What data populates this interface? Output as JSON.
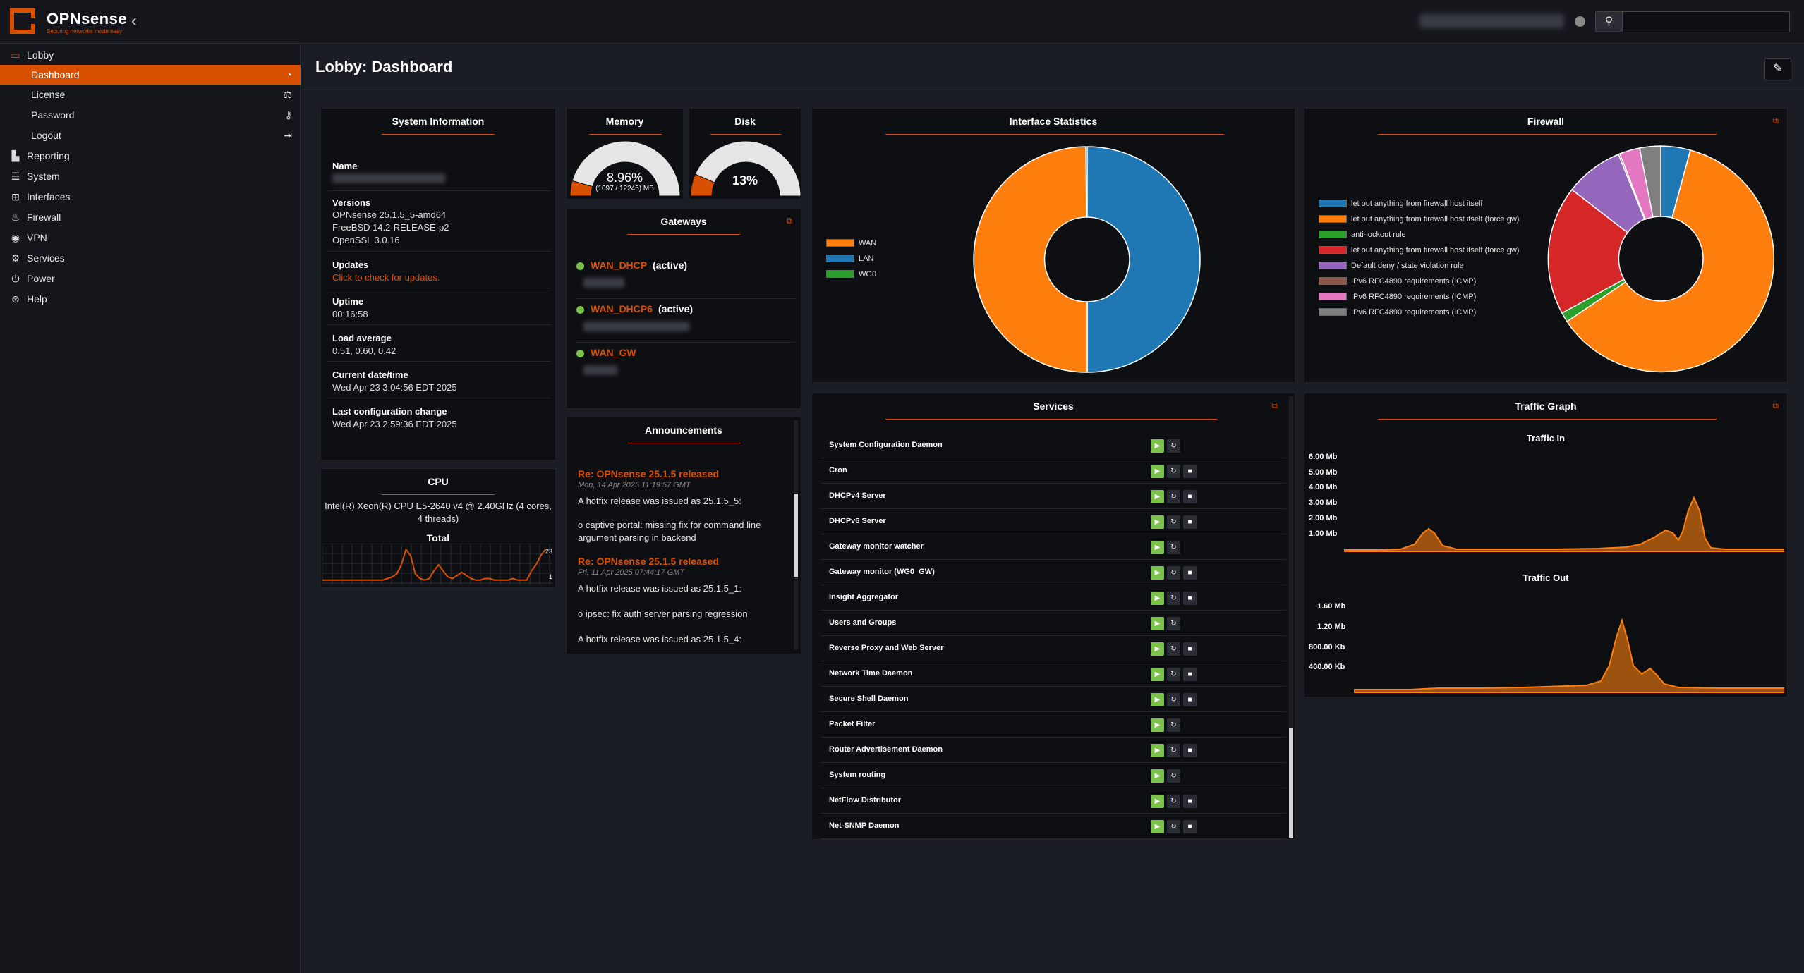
{
  "app": {
    "name": "OPNsense",
    "tagline": "Securing networks made easy",
    "search_placeholder": ""
  },
  "sidebar": {
    "items": [
      {
        "label": "Lobby",
        "icon": "laptop-icon"
      },
      {
        "label": "Dashboard",
        "icon": "dashboard-icon",
        "active": true
      },
      {
        "label": "License",
        "icon": "balance-icon"
      },
      {
        "label": "Password",
        "icon": "key-icon"
      },
      {
        "label": "Logout",
        "icon": "sign-out-icon"
      },
      {
        "label": "Reporting",
        "icon": "area-chart-icon"
      },
      {
        "label": "System",
        "icon": "server-icon"
      },
      {
        "label": "Interfaces",
        "icon": "sitemap-icon"
      },
      {
        "label": "Firewall",
        "icon": "fire-icon"
      },
      {
        "label": "VPN",
        "icon": "globe-icon"
      },
      {
        "label": "Services",
        "icon": "cog-icon"
      },
      {
        "label": "Power",
        "icon": "plug-icon"
      },
      {
        "label": "Help",
        "icon": "life-ring-icon"
      }
    ]
  },
  "header": {
    "title": "Lobby: Dashboard"
  },
  "system_info": {
    "title": "System Information",
    "name_label": "Name",
    "versions_label": "Versions",
    "versions": [
      "OPNsense 25.1.5_5-amd64",
      "FreeBSD 14.2-RELEASE-p2",
      "OpenSSL 3.0.16"
    ],
    "updates_label": "Updates",
    "updates_link": "Click to check for updates.",
    "uptime_label": "Uptime",
    "uptime": "00:16:58",
    "load_label": "Load average",
    "load": "0.51, 0.60, 0.42",
    "datetime_label": "Current date/time",
    "datetime": "Wed Apr 23 3:04:56 EDT 2025",
    "lastconf_label": "Last configuration change",
    "lastconf": "Wed Apr 23 2:59:36 EDT 2025"
  },
  "cpu": {
    "title": "CPU",
    "model": "Intel(R) Xeon(R) CPU E5-2640 v4 @ 2.40GHz (4 cores, 4 threads)",
    "total_label": "Total",
    "max_label": "23",
    "min_label": "1",
    "values": [
      2,
      2,
      2,
      2,
      2,
      2,
      2,
      2,
      2,
      2,
      2,
      2,
      2,
      2,
      3,
      4,
      6,
      12,
      22,
      18,
      6,
      3,
      2,
      3,
      8,
      12,
      8,
      4,
      3,
      5,
      7,
      5,
      3,
      2,
      2,
      3,
      3,
      2,
      2,
      2,
      2,
      3,
      2,
      2,
      2,
      8,
      12,
      18,
      22
    ]
  },
  "memory": {
    "title": "Memory",
    "percent": 8.96,
    "percent_text": "8.96%",
    "detail": "(1097 / 12245) MB"
  },
  "disk": {
    "title": "Disk",
    "percent": 13,
    "percent_text": "13%"
  },
  "gateways": {
    "title": "Gateways",
    "items": [
      {
        "name": "WAN_DHCP",
        "status": "(active)"
      },
      {
        "name": "WAN_DHCP6",
        "status": "(active)"
      },
      {
        "name": "WAN_GW",
        "status": ""
      }
    ]
  },
  "announcements": {
    "title": "Announcements",
    "items": [
      {
        "title": "Re: OPNsense 25.1.5 released",
        "date": "Mon, 14 Apr 2025 11:19:57 GMT",
        "lines": [
          "A hotfix release was issued as 25.1.5_5:",
          "o captive portal: missing fix for command line argument parsing in backend"
        ]
      },
      {
        "title": "Re: OPNsense 25.1.5 released",
        "date": "Fri, 11 Apr 2025 07:44:17 GMT",
        "lines": [
          "A hotfix release was issued as 25.1.5_1:",
          "o ipsec: fix auth server parsing regression",
          "A hotfix release was issued as 25.1.5_4:"
        ]
      }
    ]
  },
  "interface_stats": {
    "title": "Interface Statistics",
    "legend": [
      {
        "label": "WAN",
        "color": "#ff7f0e"
      },
      {
        "label": "LAN",
        "color": "#1f77b4"
      },
      {
        "label": "WG0",
        "color": "#2ca02c"
      }
    ]
  },
  "firewall": {
    "title": "Firewall",
    "legend": [
      {
        "label": "let out anything from firewall host itself",
        "color": "#1f77b4"
      },
      {
        "label": "let out anything from firewall host itself (force gw)",
        "color": "#ff7f0e"
      },
      {
        "label": "anti-lockout rule",
        "color": "#2ca02c"
      },
      {
        "label": "let out anything from firewall host itself (force gw)",
        "color": "#d62728"
      },
      {
        "label": "Default deny / state violation rule",
        "color": "#9467bd"
      },
      {
        "label": "IPv6 RFC4890 requirements (ICMP)",
        "color": "#8c564b"
      },
      {
        "label": "IPv6 RFC4890 requirements (ICMP)",
        "color": "#e377c2"
      },
      {
        "label": "IPv6 RFC4890 requirements (ICMP)",
        "color": "#7f7f7f"
      }
    ]
  },
  "services": {
    "title": "Services",
    "items": [
      {
        "name": "System Configuration Daemon",
        "stop": false
      },
      {
        "name": "Cron",
        "stop": true
      },
      {
        "name": "DHCPv4 Server",
        "stop": true
      },
      {
        "name": "DHCPv6 Server",
        "stop": true
      },
      {
        "name": "Gateway monitor watcher",
        "stop": false
      },
      {
        "name": "Gateway monitor (WG0_GW)",
        "stop": true
      },
      {
        "name": "Insight Aggregator",
        "stop": true
      },
      {
        "name": "Users and Groups",
        "stop": false
      },
      {
        "name": "Reverse Proxy and Web Server",
        "stop": true
      },
      {
        "name": "Network Time Daemon",
        "stop": true
      },
      {
        "name": "Secure Shell Daemon",
        "stop": true
      },
      {
        "name": "Packet Filter",
        "stop": false
      },
      {
        "name": "Router Advertisement Daemon",
        "stop": true
      },
      {
        "name": "System routing",
        "stop": false
      },
      {
        "name": "NetFlow Distributor",
        "stop": true
      },
      {
        "name": "Net-SNMP Daemon",
        "stop": true
      }
    ]
  },
  "traffic": {
    "title": "Traffic Graph",
    "in_title": "Traffic In",
    "out_title": "Traffic Out",
    "in_ticks": [
      "6.00 Mb",
      "5.00 Mb",
      "4.00 Mb",
      "3.00 Mb",
      "2.00 Mb",
      "1.00 Mb"
    ],
    "out_ticks": [
      "1.60 Mb",
      "1.20 Mb",
      "800.00 Kb",
      "400.00 Kb"
    ]
  },
  "colors": {
    "accent": "#d94f00",
    "wan": "#ff7f0e",
    "lan": "#1f77b4",
    "ok": "#7ac24a"
  }
}
